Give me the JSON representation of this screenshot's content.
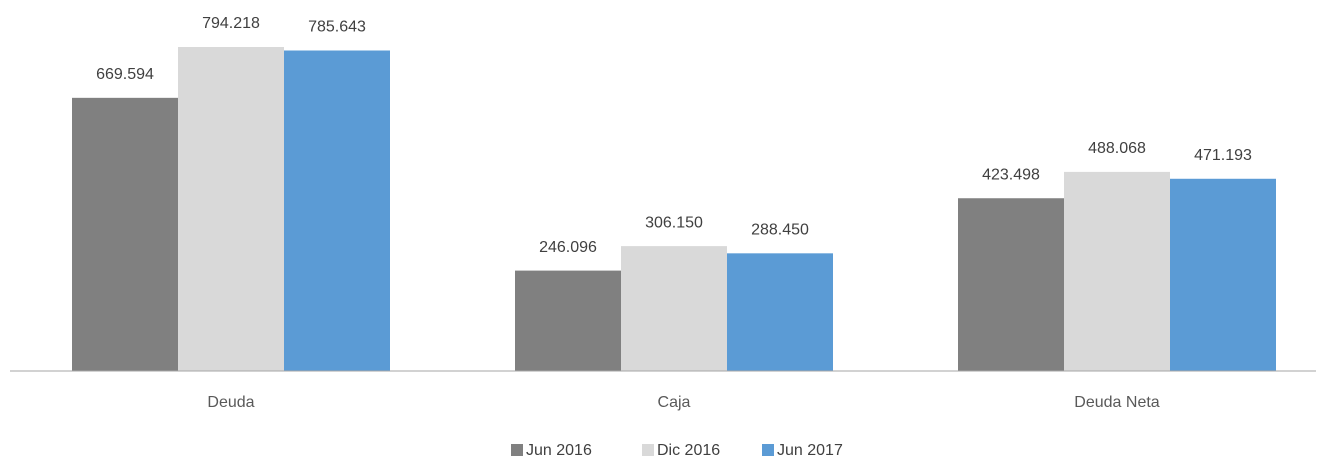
{
  "chart_data": {
    "type": "bar",
    "categories": [
      "Deuda",
      "Caja",
      "Deuda Neta"
    ],
    "series": [
      {
        "name": "Jun 2016",
        "color": "#808080",
        "values": [
          669594,
          246096,
          423498
        ],
        "value_labels": [
          "669.594",
          "246.096",
          "423.498"
        ]
      },
      {
        "name": "Dic 2016",
        "color": "#d9d9d9",
        "values": [
          794218,
          306150,
          488068
        ],
        "value_labels": [
          "794.218",
          "306.150",
          "488.068"
        ]
      },
      {
        "name": "Jun 2017",
        "color": "#5b9bd5",
        "values": [
          785643,
          288450,
          471193
        ],
        "value_labels": [
          "785.643",
          "288.450",
          "471.193"
        ]
      }
    ],
    "legend": "bottom"
  }
}
